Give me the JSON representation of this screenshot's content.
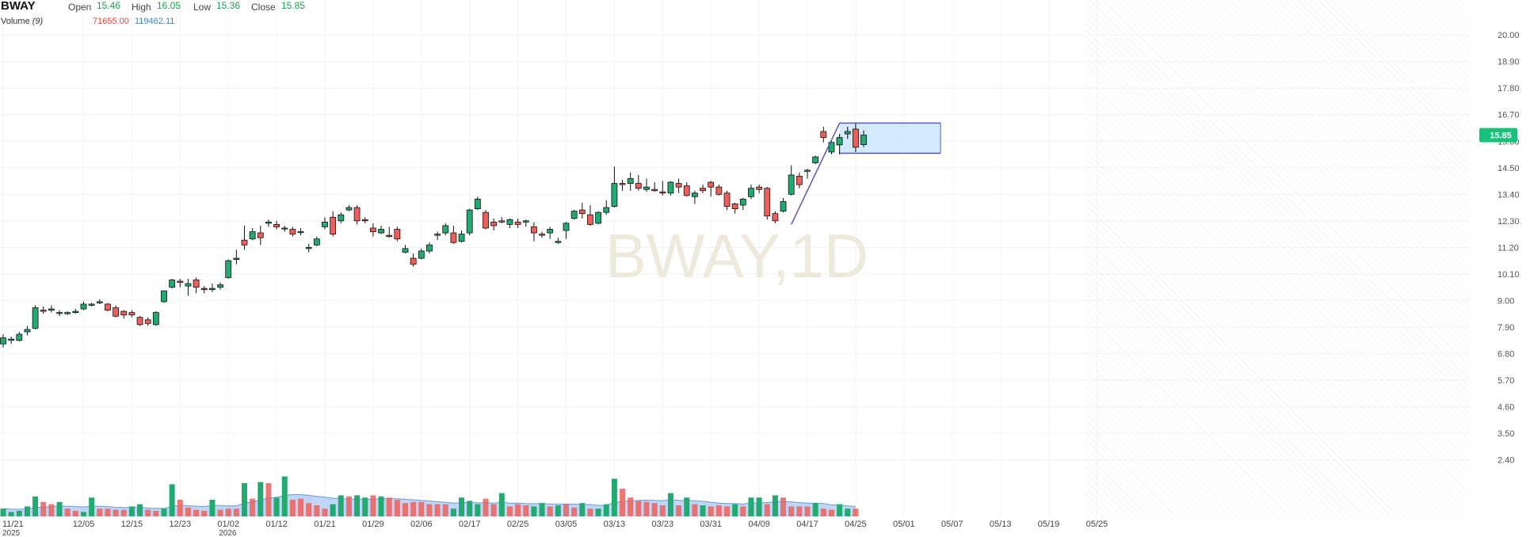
{
  "header": {
    "symbol": "BWAY",
    "open_label": "Open",
    "open_value": "15.46",
    "high_label": "High",
    "high_value": "16.05",
    "low_label": "Low",
    "low_value": "15.36",
    "close_label": "Close",
    "close_value": "15.85",
    "volume_label": "Volume",
    "volume_period": "(9)",
    "volume_value": "71655.00",
    "volume_ma_value": "119462.11"
  },
  "watermark": "BWAY,1D",
  "last_price_label": "15.85",
  "colors": {
    "up": "#22ab70",
    "down": "#ee5f5b",
    "volume_ma_fill": "#a9c8f3",
    "volume_ma_line": "#6a9be0",
    "drawing": "#5b57b5",
    "drawing_fill": "#bfe1fb",
    "price_tag": "#17c37b",
    "label_green": "#17a34a",
    "label_red": "#e0483e",
    "label_blue": "#3b82c4"
  },
  "chart_data": {
    "type": "candlestick",
    "y_axis_ticks": [
      "20.00",
      "18.90",
      "17.80",
      "16.70",
      "15.60",
      "14.50",
      "13.40",
      "12.30",
      "11.20",
      "10.10",
      "9.00",
      "7.90",
      "6.80",
      "5.70",
      "4.60",
      "3.50",
      "2.40"
    ],
    "y_axis_range": [
      1.3,
      20.4
    ],
    "x_axis_labels": [
      {
        "label": "11/21",
        "sub": "2025",
        "bar": 0
      },
      {
        "label": "12/05",
        "bar": 10
      },
      {
        "label": "12/15",
        "bar": 16
      },
      {
        "label": "12/23",
        "bar": 22
      },
      {
        "label": "01/02",
        "sub": "2026",
        "bar": 28
      },
      {
        "label": "01/12",
        "bar": 34
      },
      {
        "label": "01/21",
        "bar": 40
      },
      {
        "label": "01/29",
        "bar": 46
      },
      {
        "label": "02/06",
        "bar": 52
      },
      {
        "label": "02/17",
        "bar": 58
      },
      {
        "label": "02/25",
        "bar": 64
      },
      {
        "label": "03/05",
        "bar": 70
      },
      {
        "label": "03/13",
        "bar": 76
      },
      {
        "label": "03/23",
        "bar": 82
      },
      {
        "label": "03/31",
        "bar": 88
      },
      {
        "label": "04/09",
        "bar": 94
      },
      {
        "label": "04/17",
        "bar": 100
      },
      {
        "label": "04/25",
        "bar": 106
      },
      {
        "label": "05/01",
        "bar": 112
      },
      {
        "label": "05/07",
        "bar": 118
      },
      {
        "label": "05/13",
        "bar": 124
      },
      {
        "label": "05/19",
        "bar": 130
      },
      {
        "label": "05/25",
        "bar": 136
      }
    ],
    "ohlc": [
      [
        7.2,
        7.6,
        7.05,
        7.45
      ],
      [
        7.35,
        7.5,
        7.2,
        7.4
      ],
      [
        7.35,
        7.7,
        7.3,
        7.6
      ],
      [
        7.7,
        7.95,
        7.55,
        7.8
      ],
      [
        7.85,
        8.8,
        7.8,
        8.7
      ],
      [
        8.6,
        8.75,
        8.45,
        8.55
      ],
      [
        8.6,
        8.8,
        8.5,
        8.65
      ],
      [
        8.5,
        8.6,
        8.35,
        8.5
      ],
      [
        8.45,
        8.55,
        8.4,
        8.5
      ],
      [
        8.5,
        8.65,
        8.45,
        8.55
      ],
      [
        8.65,
        8.95,
        8.6,
        8.85
      ],
      [
        8.8,
        8.9,
        8.75,
        8.85
      ],
      [
        8.9,
        9.05,
        8.85,
        8.95
      ],
      [
        8.85,
        8.9,
        8.55,
        8.6
      ],
      [
        8.7,
        8.8,
        8.3,
        8.35
      ],
      [
        8.55,
        8.6,
        8.25,
        8.4
      ],
      [
        8.5,
        8.6,
        8.3,
        8.4
      ],
      [
        8.3,
        8.35,
        7.95,
        8.0
      ],
      [
        8.2,
        8.3,
        7.95,
        8.05
      ],
      [
        8.0,
        8.55,
        7.95,
        8.5
      ],
      [
        8.95,
        9.4,
        8.9,
        9.4
      ],
      [
        9.55,
        9.9,
        9.5,
        9.85
      ],
      [
        9.8,
        9.9,
        9.55,
        9.75
      ],
      [
        9.6,
        9.9,
        9.2,
        9.7
      ],
      [
        9.85,
        9.95,
        9.3,
        9.55
      ],
      [
        9.5,
        9.6,
        9.3,
        9.45
      ],
      [
        9.45,
        9.7,
        9.35,
        9.5
      ],
      [
        9.55,
        9.75,
        9.45,
        9.65
      ],
      [
        9.95,
        10.7,
        9.9,
        10.65
      ],
      [
        10.7,
        11.1,
        10.5,
        10.75
      ],
      [
        11.5,
        12.1,
        11.1,
        11.3
      ],
      [
        11.55,
        12.0,
        11.5,
        11.85
      ],
      [
        11.8,
        12.1,
        11.3,
        11.6
      ],
      [
        12.2,
        12.35,
        12.05,
        12.25
      ],
      [
        12.15,
        12.3,
        11.95,
        12.05
      ],
      [
        12.0,
        12.1,
        11.85,
        12.0
      ],
      [
        11.95,
        12.05,
        11.65,
        11.75
      ],
      [
        11.85,
        12.0,
        11.7,
        11.85
      ],
      [
        11.15,
        11.35,
        11.0,
        11.2
      ],
      [
        11.3,
        11.65,
        11.25,
        11.55
      ],
      [
        12.05,
        12.45,
        11.95,
        12.25
      ],
      [
        12.45,
        12.7,
        11.65,
        11.75
      ],
      [
        12.3,
        12.65,
        12.2,
        12.55
      ],
      [
        12.75,
        12.95,
        12.7,
        12.85
      ],
      [
        12.85,
        12.95,
        12.15,
        12.3
      ],
      [
        12.35,
        12.45,
        12.2,
        12.3
      ],
      [
        12.0,
        12.2,
        11.65,
        11.85
      ],
      [
        11.8,
        12.1,
        11.75,
        11.95
      ],
      [
        11.7,
        12.05,
        11.6,
        11.65
      ],
      [
        11.95,
        12.05,
        11.45,
        11.55
      ],
      [
        11.0,
        11.3,
        10.95,
        11.15
      ],
      [
        10.75,
        10.95,
        10.4,
        10.5
      ],
      [
        10.75,
        11.15,
        10.7,
        11.05
      ],
      [
        11.05,
        11.4,
        10.95,
        11.3
      ],
      [
        11.7,
        11.85,
        11.5,
        11.75
      ],
      [
        11.8,
        12.2,
        11.7,
        12.1
      ],
      [
        11.8,
        12.1,
        11.35,
        11.4
      ],
      [
        11.45,
        11.9,
        11.4,
        11.75
      ],
      [
        11.8,
        12.8,
        11.7,
        12.75
      ],
      [
        12.8,
        13.3,
        12.75,
        13.2
      ],
      [
        12.65,
        12.75,
        11.95,
        12.0
      ],
      [
        12.25,
        12.4,
        11.9,
        12.1
      ],
      [
        12.3,
        12.45,
        12.2,
        12.25
      ],
      [
        12.15,
        12.4,
        12.0,
        12.35
      ],
      [
        12.25,
        12.4,
        12.0,
        12.15
      ],
      [
        12.25,
        12.35,
        12.05,
        12.3
      ],
      [
        12.05,
        12.25,
        11.45,
        11.8
      ],
      [
        11.75,
        11.85,
        11.6,
        11.7
      ],
      [
        11.8,
        12.05,
        11.55,
        11.95
      ],
      [
        11.4,
        11.6,
        11.35,
        11.45
      ],
      [
        11.9,
        12.25,
        11.55,
        12.2
      ],
      [
        12.4,
        12.75,
        12.35,
        12.7
      ],
      [
        12.75,
        13.05,
        12.4,
        12.6
      ],
      [
        12.55,
        12.95,
        12.1,
        12.15
      ],
      [
        12.2,
        12.7,
        12.15,
        12.65
      ],
      [
        12.65,
        13.15,
        12.55,
        12.85
      ],
      [
        12.9,
        14.55,
        12.85,
        13.85
      ],
      [
        13.85,
        14.0,
        13.55,
        13.8
      ],
      [
        13.85,
        14.3,
        13.55,
        14.05
      ],
      [
        13.85,
        14.2,
        13.55,
        13.65
      ],
      [
        13.6,
        14.05,
        13.5,
        13.7
      ],
      [
        13.6,
        13.9,
        13.5,
        13.55
      ],
      [
        13.5,
        13.95,
        13.35,
        13.45
      ],
      [
        13.45,
        13.95,
        13.35,
        13.9
      ],
      [
        13.85,
        14.05,
        13.45,
        13.7
      ],
      [
        13.75,
        13.9,
        13.3,
        13.35
      ],
      [
        13.3,
        13.55,
        13.0,
        13.45
      ],
      [
        13.65,
        13.8,
        13.45,
        13.55
      ],
      [
        13.9,
        13.95,
        13.3,
        13.7
      ],
      [
        13.7,
        13.8,
        13.35,
        13.4
      ],
      [
        13.45,
        13.55,
        12.75,
        12.9
      ],
      [
        13.0,
        13.05,
        12.6,
        12.8
      ],
      [
        12.95,
        13.25,
        12.75,
        13.2
      ],
      [
        13.3,
        13.8,
        13.2,
        13.65
      ],
      [
        13.7,
        13.8,
        13.45,
        13.6
      ],
      [
        13.65,
        13.7,
        12.35,
        12.5
      ],
      [
        12.6,
        12.7,
        12.2,
        12.3
      ],
      [
        12.7,
        13.25,
        12.65,
        13.1
      ],
      [
        13.4,
        14.6,
        13.35,
        14.2
      ],
      [
        14.15,
        14.3,
        13.65,
        13.8
      ],
      [
        14.35,
        14.45,
        14.05,
        14.4
      ],
      [
        14.7,
        15.0,
        14.65,
        14.95
      ],
      [
        16.0,
        16.2,
        15.55,
        15.75
      ],
      [
        15.15,
        15.6,
        15.05,
        15.55
      ],
      [
        15.45,
        15.9,
        15.05,
        15.75
      ],
      [
        15.9,
        16.2,
        15.7,
        16.0
      ],
      [
        16.1,
        16.35,
        15.15,
        15.35
      ],
      [
        15.46,
        16.05,
        15.36,
        15.85
      ]
    ],
    "volume": [
      [
        0.35,
        1
      ],
      [
        0.2,
        1
      ],
      [
        0.25,
        1
      ],
      [
        0.45,
        1
      ],
      [
        0.9,
        1
      ],
      [
        0.65,
        0
      ],
      [
        0.55,
        0
      ],
      [
        0.65,
        1
      ],
      [
        0.35,
        0
      ],
      [
        0.25,
        0
      ],
      [
        0.2,
        1
      ],
      [
        0.85,
        1
      ],
      [
        0.35,
        0
      ],
      [
        0.35,
        0
      ],
      [
        0.3,
        0
      ],
      [
        0.3,
        0
      ],
      [
        0.45,
        1
      ],
      [
        0.55,
        1
      ],
      [
        0.3,
        0
      ],
      [
        0.25,
        0
      ],
      [
        0.35,
        1
      ],
      [
        1.45,
        1
      ],
      [
        0.75,
        0
      ],
      [
        0.4,
        0
      ],
      [
        0.3,
        0
      ],
      [
        0.25,
        0
      ],
      [
        0.75,
        1
      ],
      [
        0.3,
        0
      ],
      [
        0.35,
        0
      ],
      [
        0.35,
        0
      ],
      [
        1.5,
        1
      ],
      [
        0.8,
        0
      ],
      [
        1.55,
        1
      ],
      [
        1.5,
        0
      ],
      [
        0.85,
        1
      ],
      [
        1.8,
        1
      ],
      [
        0.75,
        0
      ],
      [
        0.8,
        0
      ],
      [
        0.6,
        0
      ],
      [
        0.5,
        0
      ],
      [
        0.35,
        0
      ],
      [
        0.55,
        1
      ],
      [
        0.95,
        1
      ],
      [
        0.9,
        0
      ],
      [
        0.95,
        1
      ],
      [
        0.85,
        1
      ],
      [
        0.95,
        0
      ],
      [
        0.9,
        1
      ],
      [
        0.85,
        0
      ],
      [
        0.75,
        0
      ],
      [
        0.6,
        0
      ],
      [
        0.65,
        0
      ],
      [
        0.65,
        0
      ],
      [
        0.55,
        0
      ],
      [
        0.55,
        0
      ],
      [
        0.55,
        0
      ],
      [
        0.35,
        1
      ],
      [
        0.85,
        1
      ],
      [
        0.7,
        1
      ],
      [
        0.55,
        1
      ],
      [
        0.8,
        0
      ],
      [
        0.55,
        0
      ],
      [
        1.05,
        1
      ],
      [
        0.45,
        0
      ],
      [
        0.55,
        0
      ],
      [
        0.5,
        0
      ],
      [
        0.45,
        1
      ],
      [
        0.6,
        1
      ],
      [
        0.45,
        0
      ],
      [
        0.5,
        1
      ],
      [
        0.55,
        0
      ],
      [
        0.4,
        0
      ],
      [
        0.6,
        1
      ],
      [
        0.35,
        0
      ],
      [
        0.35,
        1
      ],
      [
        0.55,
        1
      ],
      [
        1.7,
        1
      ],
      [
        1.25,
        0
      ],
      [
        0.85,
        0
      ],
      [
        0.7,
        0
      ],
      [
        0.65,
        0
      ],
      [
        0.6,
        0
      ],
      [
        0.5,
        0
      ],
      [
        1.05,
        1
      ],
      [
        0.5,
        0
      ],
      [
        0.85,
        1
      ],
      [
        0.55,
        0
      ],
      [
        0.5,
        1
      ],
      [
        0.45,
        0
      ],
      [
        0.5,
        0
      ],
      [
        0.45,
        0
      ],
      [
        0.55,
        1
      ],
      [
        0.45,
        0
      ],
      [
        0.85,
        1
      ],
      [
        0.85,
        1
      ],
      [
        0.55,
        0
      ],
      [
        0.95,
        1
      ],
      [
        0.85,
        0
      ],
      [
        0.45,
        0
      ],
      [
        0.45,
        0
      ],
      [
        0.45,
        0
      ],
      [
        0.6,
        1
      ],
      [
        0.35,
        0
      ],
      [
        0.3,
        0
      ],
      [
        0.55,
        1
      ],
      [
        0.35,
        1
      ],
      [
        0.35,
        0
      ]
    ],
    "volume_ma": [
      0.35,
      0.33,
      0.32,
      0.34,
      0.4,
      0.42,
      0.44,
      0.47,
      0.46,
      0.44,
      0.43,
      0.45,
      0.46,
      0.44,
      0.41,
      0.4,
      0.4,
      0.41,
      0.38,
      0.36,
      0.36,
      0.46,
      0.5,
      0.48,
      0.46,
      0.44,
      0.5,
      0.49,
      0.47,
      0.48,
      0.6,
      0.66,
      0.75,
      0.82,
      0.86,
      0.95,
      0.98,
      0.98,
      0.95,
      0.9,
      0.87,
      0.82,
      0.8,
      0.78,
      0.78,
      0.76,
      0.78,
      0.79,
      0.8,
      0.8,
      0.77,
      0.75,
      0.72,
      0.7,
      0.66,
      0.64,
      0.6,
      0.62,
      0.62,
      0.61,
      0.62,
      0.6,
      0.64,
      0.6,
      0.6,
      0.58,
      0.57,
      0.58,
      0.56,
      0.56,
      0.56,
      0.55,
      0.55,
      0.53,
      0.5,
      0.5,
      0.62,
      0.68,
      0.7,
      0.72,
      0.73,
      0.72,
      0.71,
      0.76,
      0.72,
      0.72,
      0.7,
      0.68,
      0.64,
      0.6,
      0.58,
      0.58,
      0.56,
      0.6,
      0.62,
      0.62,
      0.66,
      0.68,
      0.65,
      0.62,
      0.6,
      0.6,
      0.58,
      0.52,
      0.52,
      0.47,
      0.45
    ],
    "drawings": {
      "trend_from": {
        "bar": 98,
        "price": 12.15
      },
      "trend_to": {
        "bar": 104,
        "price": 16.35
      },
      "channel_top": 16.35,
      "channel_bottom": 15.1,
      "channel_from_bar": 104,
      "channel_to_bar": 114
    }
  }
}
